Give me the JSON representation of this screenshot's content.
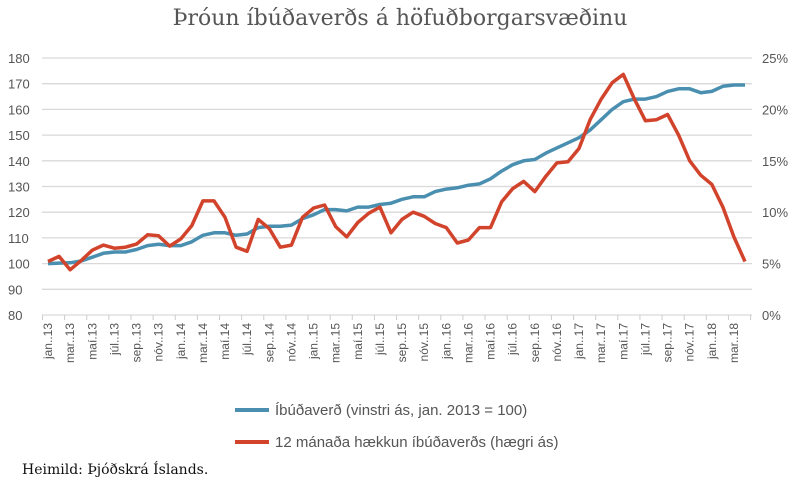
{
  "chart_data": {
    "type": "line",
    "title": "Þróun íbúðaverðs á höfuðborgarsvæðinu",
    "x": [
      "jan..13",
      "feb..13",
      "mar..13",
      "apr..13",
      "maí.13",
      "jún..13",
      "júl..13",
      "ágú..13",
      "sep..13",
      "okt..13",
      "nóv..13",
      "des..13",
      "jan..14",
      "feb..14",
      "mar..14",
      "apr..14",
      "maí.14",
      "jún..14",
      "júl..14",
      "ágú..14",
      "sep..14",
      "okt..14",
      "nóv..14",
      "des..14",
      "jan..15",
      "feb..15",
      "mar..15",
      "apr..15",
      "maí.15",
      "jún..15",
      "júl..15",
      "ágú..15",
      "sep..15",
      "okt..15",
      "nóv..15",
      "des..15",
      "jan..16",
      "feb..16",
      "mar..16",
      "apr..16",
      "maí.16",
      "jún..16",
      "júl..16",
      "ágú..16",
      "sep..16",
      "okt..16",
      "nóv..16",
      "des..16",
      "jan..17",
      "feb..17",
      "mar..17",
      "apr..17",
      "maí.17",
      "jún..17",
      "júl..17",
      "ágú..17",
      "sep..17",
      "okt..17",
      "nóv..17",
      "des..17",
      "jan..18",
      "feb..18",
      "mar..18",
      "apr..18"
    ],
    "tick_every": 2,
    "left_axis": {
      "ylim": [
        80,
        180
      ],
      "ticks": [
        "80",
        "90",
        "100",
        "110",
        "120",
        "130",
        "140",
        "150",
        "160",
        "170",
        "180"
      ]
    },
    "right_axis": {
      "ylim": [
        0,
        25
      ],
      "ticks": [
        "0%",
        "5%",
        "10%",
        "15%",
        "20%",
        "25%"
      ]
    },
    "grid": true,
    "legend_position": "bottom",
    "series": [
      {
        "name": "Íbúðaverð (vinstri ás, jan. 2013 = 100)",
        "axis": "left",
        "color": "#4a8fb0",
        "values": [
          100,
          100.2,
          100.3,
          101,
          102.5,
          104,
          104.5,
          104.5,
          105.5,
          107,
          107.5,
          107,
          107,
          108.5,
          111,
          112,
          112,
          111,
          111.5,
          114,
          114.5,
          114.5,
          115,
          117.5,
          119,
          121,
          121,
          120.5,
          122,
          122,
          123,
          123.5,
          125,
          126,
          126,
          128,
          129,
          129.5,
          130.5,
          131,
          133,
          136,
          138.5,
          140,
          140.5,
          143,
          145,
          147,
          149,
          152,
          156,
          160,
          163,
          164,
          164,
          165,
          167,
          168,
          168,
          166.5,
          167,
          169,
          169.5,
          169.5
        ]
      },
      {
        "name": "12 mánaða hækkun íbúðaverðs (hægri ás)",
        "axis": "right",
        "color": "#d2432c",
        "values": [
          5.2,
          5.7,
          4.4,
          5.3,
          6.3,
          6.8,
          6.5,
          6.6,
          6.9,
          7.8,
          7.7,
          6.7,
          7.4,
          8.7,
          11.1,
          11.1,
          9.5,
          6.6,
          6.2,
          9.3,
          8.4,
          6.6,
          6.8,
          9.5,
          10.4,
          10.7,
          8.6,
          7.6,
          9.0,
          9.9,
          10.5,
          8.0,
          9.3,
          10.0,
          9.6,
          8.9,
          8.5,
          7.0,
          7.3,
          8.5,
          8.5,
          11.0,
          12.3,
          13.0,
          12.0,
          13.5,
          14.8,
          14.9,
          16.2,
          19.0,
          21.0,
          22.6,
          23.4,
          21.0,
          18.9,
          19.0,
          19.5,
          17.5,
          15.0,
          13.6,
          12.7,
          10.5,
          7.6,
          5.2
        ]
      }
    ]
  },
  "source": "Heimild: Þjóðskrá Íslands."
}
